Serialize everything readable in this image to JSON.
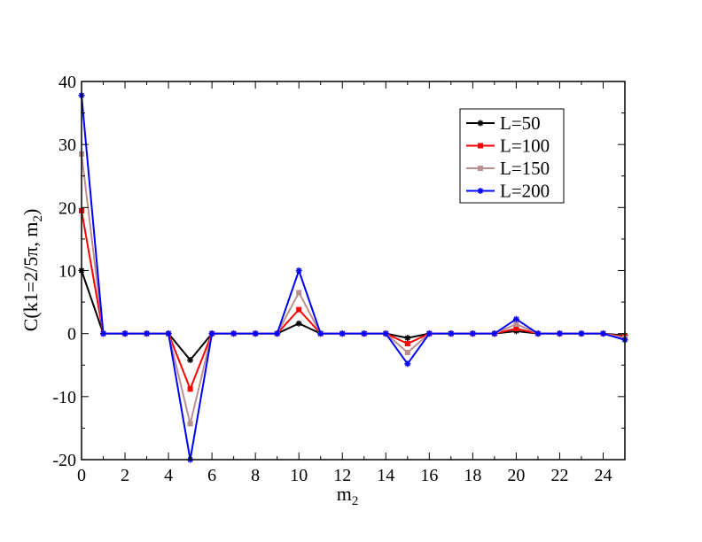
{
  "chart_data": {
    "type": "line",
    "x": [
      0,
      1,
      2,
      3,
      4,
      5,
      6,
      7,
      8,
      9,
      10,
      11,
      12,
      13,
      14,
      15,
      16,
      17,
      18,
      19,
      20,
      21,
      22,
      23,
      24,
      25
    ],
    "xlim": [
      0,
      25
    ],
    "ylim": [
      -20,
      40
    ],
    "x_ticks": [
      "0",
      "2",
      "4",
      "6",
      "8",
      "10",
      "12",
      "14",
      "16",
      "18",
      "20",
      "22",
      "24"
    ],
    "y_ticks": [
      "-20",
      "-10",
      "0",
      "10",
      "20",
      "30",
      "40"
    ],
    "xlabel_base": "m",
    "xlabel_sub": "2",
    "ylabel_main": "C(k1=2/5π, m",
    "ylabel_sub": "2",
    "ylabel_close": ")",
    "legend_position": "top-right",
    "grid": false,
    "series": [
      {
        "name": "L=50",
        "color": "#000000",
        "marker": "star",
        "values": [
          10,
          0,
          0,
          0,
          0,
          -4.2,
          0,
          0,
          0,
          0,
          1.6,
          0,
          0,
          0,
          0,
          -0.7,
          0,
          0,
          0,
          0,
          0.4,
          0,
          0,
          0,
          0,
          -0.3
        ]
      },
      {
        "name": "L=100",
        "color": "#ff0000",
        "marker": "square",
        "values": [
          19.5,
          0,
          0,
          0,
          0,
          -8.8,
          0,
          0,
          0,
          0,
          3.8,
          0,
          0,
          0,
          0,
          -1.6,
          0,
          0,
          0,
          0,
          0.8,
          0,
          0,
          0,
          0,
          -0.5
        ]
      },
      {
        "name": "L=150",
        "color": "#bc8f8f",
        "marker": "square",
        "values": [
          28.5,
          0,
          0,
          0,
          0,
          -14.3,
          0,
          0,
          0,
          0,
          6.5,
          0,
          0,
          0,
          0,
          -3.0,
          0,
          0,
          0,
          0,
          1.5,
          0,
          0,
          0,
          0,
          -0.7
        ]
      },
      {
        "name": "L=200",
        "color": "#0000ff",
        "marker": "star",
        "values": [
          37.8,
          0,
          0,
          0,
          0,
          -20,
          0,
          0,
          0,
          0,
          10,
          0,
          0,
          0,
          0,
          -4.8,
          0,
          0,
          0,
          0,
          2.3,
          0,
          0,
          0,
          0,
          -1.0
        ]
      }
    ]
  }
}
